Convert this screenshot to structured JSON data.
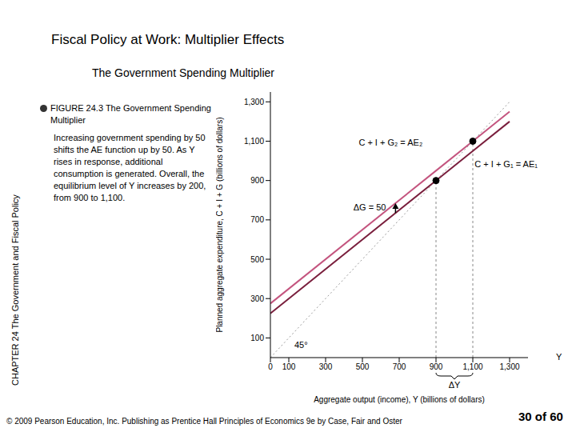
{
  "page": {
    "title": "Fiscal Policy at Work: Multiplier Effects",
    "subtitle": "The Government Spending Multiplier",
    "figure_caption": "FIGURE 24.3 The Government Spending Multiplier",
    "description": "Increasing government spending by 50 shifts the AE function up by 50. As Y rises in response, additional consumption is generated. Overall, the equilibrium level of Y increases by 200, from  900 to 1,100.",
    "side_text": "CHAPTER 24 The Government and Fiscal Policy",
    "footer": "© 2009 Pearson Education, Inc. Publishing as Prentice Hall  Principles of Economics 9e by Case, Fair and Oster",
    "page_number": "30 of 60"
  },
  "chart_data": {
    "type": "line",
    "x_label": "Aggregate output (income), Y (billions of dollars)",
    "y_label": "Planned aggregate expenditure, C + I + G (billions of dollars)",
    "x_axis_symbol": "Y",
    "x": [
      0,
      900,
      1100,
      1300
    ],
    "series": [
      {
        "name": "C + I + G₁ = AE₁",
        "color": "#7a1f3d",
        "line_style": "solid",
        "values": [
          225,
          900,
          1050,
          1200
        ],
        "label": {
          "x": 1110,
          "y": 979
        }
      },
      {
        "name": "C + I + G₂ = AE₂",
        "color": "#c4557f",
        "line_style": "solid",
        "values": [
          275,
          950,
          1100,
          1250
        ],
        "label": {
          "x": 480,
          "y": 1090
        }
      },
      {
        "name": "45°",
        "color": "#9a9a9a",
        "line_style": "dotted",
        "values": [
          0,
          900,
          1100,
          1300
        ],
        "label": {
          "x": 130,
          "y": 60
        }
      }
    ],
    "equilibria": [
      {
        "x": 900,
        "y": 900
      },
      {
        "x": 1100,
        "y": 1100
      }
    ],
    "shift_arrow": {
      "text": "ΔG = 50",
      "x": 680,
      "y1": 735,
      "y2": 785
    },
    "output_change": {
      "text": "ΔY",
      "x1": 900,
      "x2": 1100
    },
    "xlim": [
      0,
      1400
    ],
    "xticks": [
      0,
      100,
      300,
      500,
      700,
      900,
      {
        "value": 1100,
        "label": "1,100"
      },
      {
        "value": 1300,
        "label": "1,300"
      }
    ],
    "ylim": [
      0,
      1350
    ],
    "yticks": [
      100,
      300,
      500,
      700,
      900,
      {
        "value": 1100,
        "label": "1,100"
      },
      {
        "value": 1300,
        "label": "1,300"
      }
    ],
    "grid": false,
    "marker": "none"
  }
}
